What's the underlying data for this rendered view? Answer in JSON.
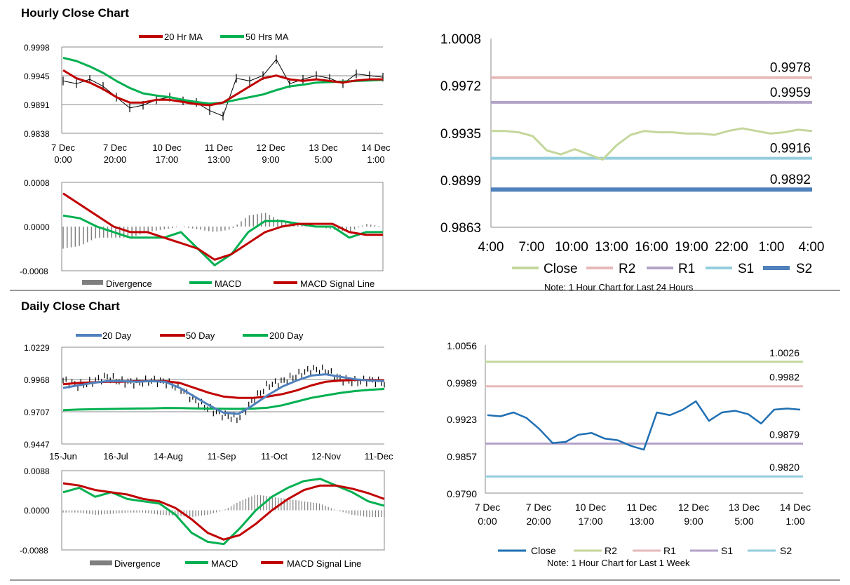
{
  "sections": {
    "hourly_title": "Hourly Close Chart",
    "daily_title": "Daily Close Chart"
  },
  "notes": {
    "hourly": "Note: 1 Hour Chart for Last 24 Hours",
    "weekly": "Note: 1 Hour Chart for Last 1 Week"
  },
  "colors": {
    "ma20": "#c00000",
    "ma50": "#00b050",
    "price": "#000000",
    "divergence": "#7f7f7f",
    "macd": "#00b050",
    "signal": "#c00000",
    "close_light": "#c4d79b",
    "r2_pink": "#e6b9b8",
    "r1_purple": "#b3a2c7",
    "s1_lightblue": "#93cddd",
    "s2_blue": "#4f81bd",
    "close_blue": "#1f6fb2",
    "r2_green": "#c4d79b",
    "day20": "#4f81bd"
  },
  "chart_data": [
    {
      "id": "hourly-price",
      "type": "line",
      "title": "",
      "legend": [
        "20 Hr MA",
        "50 Hrs MA"
      ],
      "x_tick_labels": [
        [
          "7 Dec",
          "0:00"
        ],
        [
          "7 Dec",
          "20:00"
        ],
        [
          "10 Dec",
          "17:00"
        ],
        [
          "11 Dec",
          "13:00"
        ],
        [
          "12 Dec",
          "9:00"
        ],
        [
          "13 Dec",
          "5:00"
        ],
        [
          "14 Dec",
          "1:00"
        ]
      ],
      "y_tick_labels": [
        "0.9838",
        "0.9891",
        "0.9945",
        "0.9998"
      ],
      "ylim": [
        0.9838,
        0.9998
      ],
      "series": [
        {
          "name": "Close",
          "values": [
            0.9935,
            0.993,
            0.9938,
            0.9925,
            0.9905,
            0.9885,
            0.989,
            0.99,
            0.9905,
            0.9898,
            0.9895,
            0.988,
            0.987,
            0.994,
            0.9935,
            0.9945,
            0.9975,
            0.993,
            0.9938,
            0.9945,
            0.994,
            0.993,
            0.9948,
            0.9945,
            0.9942
          ]
        },
        {
          "name": "20 Hr MA",
          "values": [
            0.9955,
            0.994,
            0.9932,
            0.992,
            0.9905,
            0.9895,
            0.9895,
            0.99,
            0.99,
            0.9896,
            0.9892,
            0.989,
            0.9895,
            0.991,
            0.9925,
            0.994,
            0.9945,
            0.9938,
            0.9935,
            0.9938,
            0.9935,
            0.9932,
            0.9936,
            0.9938,
            0.9938
          ]
        },
        {
          "name": "50 Hrs MA",
          "values": [
            0.9978,
            0.9972,
            0.9962,
            0.995,
            0.9935,
            0.9922,
            0.9912,
            0.9908,
            0.9905,
            0.99,
            0.9896,
            0.9893,
            0.9895,
            0.99,
            0.9905,
            0.991,
            0.9918,
            0.9925,
            0.9928,
            0.9932,
            0.9933,
            0.9934,
            0.9935,
            0.9936,
            0.9937
          ]
        }
      ]
    },
    {
      "id": "hourly-macd",
      "type": "line",
      "legend": [
        "Divergence",
        "MACD",
        "MACD Signal Line"
      ],
      "y_tick_labels": [
        "-0.0008",
        "0.0000",
        "0.0008"
      ],
      "ylim": [
        -0.0008,
        0.0008
      ],
      "series": [
        {
          "name": "MACD",
          "values": [
            0.0002,
            0.00015,
            0.0,
            -0.0001,
            -0.0002,
            -0.0002,
            -0.0002,
            -0.0001,
            -0.0004,
            -0.0007,
            -0.0005,
            -0.0001,
            0.0001,
            0.0001,
            5e-05,
            0.0,
            0.0,
            -0.0002,
            -0.0001,
            -0.0001
          ]
        },
        {
          "name": "MACD Signal Line",
          "values": [
            0.0006,
            0.0004,
            0.0002,
            0.0,
            -0.0001,
            -0.0001,
            -0.0002,
            -0.0003,
            -0.0004,
            -0.0006,
            -0.0005,
            -0.0003,
            -0.0001,
            0.0,
            5e-05,
            5e-05,
            5e-05,
            -0.0001,
            -0.00015,
            -0.00015
          ]
        },
        {
          "name": "Divergence",
          "values": [
            -0.0004,
            -0.00035,
            -0.0002,
            -0.0002,
            -0.0002,
            -0.0001,
            -5e-05,
            0.0,
            -5e-05,
            -0.0001,
            -5e-05,
            0.0002,
            0.00025,
            0.0001,
            5e-05,
            0.0,
            -5e-05,
            -0.0001,
            5e-05,
            0.0
          ]
        }
      ]
    },
    {
      "id": "hourly-24h",
      "type": "line",
      "x_tick_labels": [
        "4:00",
        "7:00",
        "10:00",
        "13:00",
        "16:00",
        "19:00",
        "22:00",
        "1:00",
        "4:00"
      ],
      "y_tick_labels": [
        "0.9863",
        "0.9899",
        "0.9935",
        "0.9972",
        "1.0008"
      ],
      "ylim": [
        0.9863,
        1.0008
      ],
      "legend": [
        "Close",
        "R2",
        "R1",
        "S1",
        "S2"
      ],
      "levels": [
        {
          "name": "R2",
          "value": 0.9978,
          "label": "0.9978"
        },
        {
          "name": "R1",
          "value": 0.9959,
          "label": "0.9959"
        },
        {
          "name": "S1",
          "value": 0.9916,
          "label": "0.9916"
        },
        {
          "name": "S2",
          "value": 0.9892,
          "label": "0.9892"
        }
      ],
      "series": [
        {
          "name": "Close",
          "values": [
            0.9937,
            0.9937,
            0.9936,
            0.9933,
            0.9922,
            0.9919,
            0.9923,
            0.9919,
            0.9915,
            0.9926,
            0.9934,
            0.9937,
            0.9936,
            0.9936,
            0.9935,
            0.9935,
            0.9934,
            0.9937,
            0.9939,
            0.9937,
            0.9935,
            0.9936,
            0.9938,
            0.9937
          ]
        }
      ]
    },
    {
      "id": "daily-price",
      "type": "line",
      "legend": [
        "20 Day",
        "50 Day",
        "200 Day"
      ],
      "x_tick_labels": [
        "15-Jun",
        "16-Jul",
        "14-Aug",
        "11-Sep",
        "11-Oct",
        "12-Nov",
        "11-Dec"
      ],
      "y_tick_labels": [
        "0.9447",
        "0.9707",
        "0.9968",
        "1.0229"
      ],
      "ylim": [
        0.9447,
        1.0229
      ],
      "series": [
        {
          "name": "Close",
          "values": [
            0.996,
            0.992,
            0.995,
            0.999,
            0.995,
            0.994,
            0.996,
            0.9945,
            0.99,
            0.98,
            0.973,
            0.968,
            0.965,
            0.98,
            0.992,
            0.995,
            1.0,
            1.005,
            1.004,
            0.997,
            0.995,
            0.996,
            0.994
          ]
        },
        {
          "name": "20 Day",
          "values": [
            0.99,
            0.992,
            0.994,
            0.9955,
            0.9955,
            0.995,
            0.9955,
            0.995,
            0.99,
            0.983,
            0.976,
            0.97,
            0.969,
            0.976,
            0.984,
            0.991,
            0.996,
            1.0,
            1.001,
            0.999,
            0.997,
            0.996,
            0.9955
          ]
        },
        {
          "name": "50 Day",
          "values": [
            0.993,
            0.994,
            0.9945,
            0.995,
            0.995,
            0.9955,
            0.9955,
            0.9955,
            0.994,
            0.99,
            0.986,
            0.983,
            0.982,
            0.982,
            0.983,
            0.985,
            0.988,
            0.992,
            0.995,
            0.996,
            0.9965,
            0.9965,
            0.9962
          ]
        },
        {
          "name": "200 Day",
          "values": [
            0.972,
            0.9725,
            0.9728,
            0.973,
            0.9732,
            0.9734,
            0.9735,
            0.9738,
            0.9737,
            0.9735,
            0.9733,
            0.9732,
            0.9731,
            0.9733,
            0.974,
            0.976,
            0.979,
            0.982,
            0.984,
            0.986,
            0.9875,
            0.9885,
            0.9892
          ]
        }
      ]
    },
    {
      "id": "daily-macd",
      "type": "line",
      "legend": [
        "Divergence",
        "MACD",
        "MACD Signal Line"
      ],
      "y_tick_labels": [
        "-0.0088",
        "0.0000",
        "0.0088"
      ],
      "ylim": [
        -0.0088,
        0.0088
      ],
      "series": [
        {
          "name": "MACD",
          "values": [
            0.004,
            0.005,
            0.003,
            0.004,
            0.0025,
            0.002,
            0.0015,
            -0.001,
            -0.005,
            -0.007,
            -0.0075,
            -0.004,
            0.0,
            0.003,
            0.005,
            0.0065,
            0.007,
            0.0055,
            0.004,
            0.002,
            0.001
          ]
        },
        {
          "name": "MACD Signal Line",
          "values": [
            0.006,
            0.0055,
            0.0045,
            0.004,
            0.0035,
            0.0025,
            0.002,
            0.0005,
            -0.002,
            -0.005,
            -0.0065,
            -0.0055,
            -0.003,
            0.0,
            0.0025,
            0.0045,
            0.0055,
            0.0055,
            0.0048,
            0.0038,
            0.0025
          ]
        },
        {
          "name": "Divergence",
          "values": [
            -0.0005,
            -0.0005,
            -0.001,
            -0.0008,
            -0.0005,
            -0.0005,
            -0.001,
            -0.0012,
            -0.0015,
            -0.001,
            0.0,
            0.002,
            0.0035,
            0.003,
            0.0025,
            0.002,
            0.0015,
            0.0,
            -0.001,
            -0.0015,
            -0.0015
          ]
        }
      ]
    },
    {
      "id": "weekly-hourly",
      "type": "line",
      "x_tick_labels": [
        [
          "7 Dec",
          "0:00"
        ],
        [
          "7 Dec",
          "20:00"
        ],
        [
          "10 Dec",
          "17:00"
        ],
        [
          "11 Dec",
          "13:00"
        ],
        [
          "12 Dec",
          "9:00"
        ],
        [
          "13 Dec",
          "5:00"
        ],
        [
          "14 Dec",
          "1:00"
        ]
      ],
      "y_tick_labels": [
        "0.9790",
        "0.9857",
        "0.9923",
        "0.9989",
        "1.0056"
      ],
      "ylim": [
        0.979,
        1.0056
      ],
      "legend": [
        "Close",
        "R2",
        "R1",
        "S1",
        "S2"
      ],
      "levels": [
        {
          "name": "R2",
          "value": 1.0026,
          "label": "1.0026"
        },
        {
          "name": "R1",
          "value": 0.9982,
          "label": "0.9982"
        },
        {
          "name": "S1",
          "value": 0.9879,
          "label": "0.9879"
        },
        {
          "name": "S2",
          "value": 0.982,
          "label": "0.9820"
        }
      ],
      "series": [
        {
          "name": "Close",
          "values": [
            0.993,
            0.9928,
            0.9935,
            0.9925,
            0.9905,
            0.988,
            0.9882,
            0.9895,
            0.9898,
            0.9888,
            0.9885,
            0.9875,
            0.9868,
            0.9935,
            0.993,
            0.994,
            0.9955,
            0.992,
            0.9935,
            0.9938,
            0.9932,
            0.9915,
            0.994,
            0.9942,
            0.994
          ]
        }
      ]
    }
  ]
}
